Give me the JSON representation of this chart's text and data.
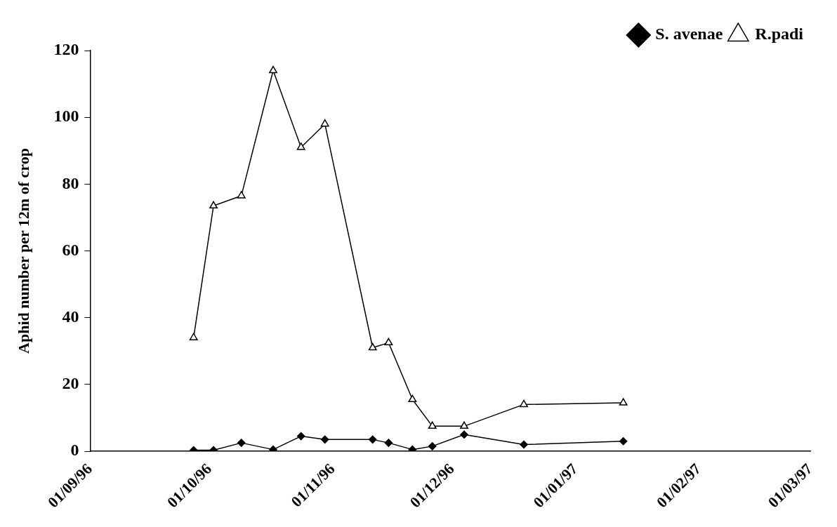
{
  "chart_data": {
    "type": "line",
    "ylabel": "Aphid number per 12m of crop",
    "xlim": [
      "1996-09-01",
      "1997-03-01"
    ],
    "xticks": [
      {
        "value": "1996-09-01",
        "label": "01/09/96"
      },
      {
        "value": "1996-10-01",
        "label": "01/10/96"
      },
      {
        "value": "1996-11-01",
        "label": "01/11/96"
      },
      {
        "value": "1996-12-01",
        "label": "01/12/96"
      },
      {
        "value": "1997-01-01",
        "label": "01/01/97"
      },
      {
        "value": "1997-02-01",
        "label": "01/02/97"
      },
      {
        "value": "1997-03-01",
        "label": "01/03/97"
      }
    ],
    "ylim": [
      0,
      120
    ],
    "yticks": [
      0,
      20,
      40,
      60,
      80,
      100,
      120
    ],
    "grid": false,
    "legend": "top right",
    "line_style": "solid",
    "x": [
      "1996-09-27",
      "1996-10-02",
      "1996-10-09",
      "1996-10-17",
      "1996-10-24",
      "1996-10-30",
      "1996-11-11",
      "1996-11-15",
      "1996-11-21",
      "1996-11-26",
      "1996-12-04",
      "1996-12-19",
      "1997-01-13"
    ],
    "series": [
      {
        "name": "S. avenae",
        "color": "#000000",
        "marker": "diamond",
        "values": [
          0.3,
          0.3,
          2.5,
          0.5,
          4.5,
          3.5,
          3.5,
          2.5,
          0.5,
          1.5,
          5,
          2,
          3
        ]
      },
      {
        "name": "R.padi",
        "color": "#000000",
        "marker": "triangle",
        "values": [
          34,
          73.5,
          76.5,
          114,
          91,
          98,
          31,
          32.5,
          15.5,
          7.5,
          7.5,
          14,
          14.5
        ]
      }
    ]
  }
}
